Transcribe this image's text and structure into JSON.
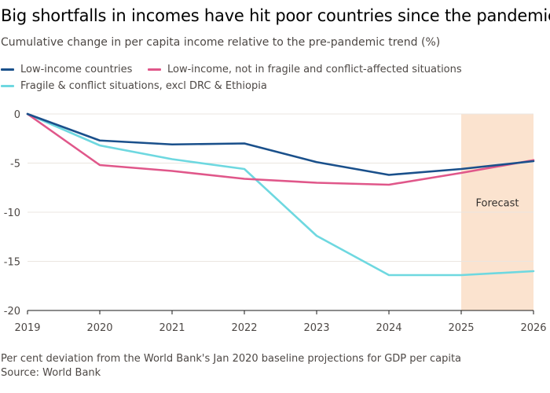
{
  "title": "Big shortfalls in incomes have hit poor countries since the pandemic",
  "subtitle": "Cumulative change in per capita income relative to the pre-pandemic trend (%)",
  "footnote": "Per cent deviation from the World Bank's Jan 2020 baseline projections for GDP per capita",
  "source": "Source: World Bank",
  "colors": {
    "low_income": "#1a508b",
    "low_income_not_fragile": "#e0578a",
    "fragile": "#6ed8e0",
    "forecast_band": "#fbe3cf",
    "grid": "#ebe6e0",
    "axis": "#1a1a1a",
    "tick_text": "#4d4845"
  },
  "chart_data": {
    "type": "line",
    "title": "Big shortfalls in incomes have hit poor countries since the pandemic",
    "xlabel": "",
    "ylabel": "",
    "x": [
      2019,
      2020,
      2021,
      2022,
      2023,
      2024,
      2025,
      2026
    ],
    "xlim": [
      2019,
      2026
    ],
    "ylim": [
      -20,
      0
    ],
    "yticks": [
      0,
      -5,
      -10,
      -15,
      -20
    ],
    "ytick_labels": [
      "0",
      "-5",
      "-10",
      "-15",
      "-20"
    ],
    "xtick_labels": [
      "2019",
      "2020",
      "2021",
      "2022",
      "2023",
      "2024",
      "2025",
      "2026"
    ],
    "grid": true,
    "legend_position": "top",
    "series": [
      {
        "name": "Low-income countries",
        "key": "low_income",
        "values": [
          0,
          -2.7,
          -3.1,
          -3.0,
          -4.9,
          -6.2,
          -5.6,
          -4.8
        ]
      },
      {
        "name": "Low-income, not in fragile and conflict-affected situations",
        "key": "low_income_not_fragile",
        "values": [
          0,
          -5.2,
          -5.8,
          -6.6,
          -7.0,
          -7.2,
          -6.0,
          -4.7
        ]
      },
      {
        "name": "Fragile & conflict situations, excl DRC & Ethiopia",
        "key": "fragile",
        "values": [
          0,
          -3.2,
          -4.6,
          -5.6,
          -12.4,
          -16.4,
          -16.4,
          -16.0
        ]
      }
    ],
    "forecast": {
      "label": "Forecast",
      "x_start": 2025,
      "x_end": 2026
    }
  }
}
